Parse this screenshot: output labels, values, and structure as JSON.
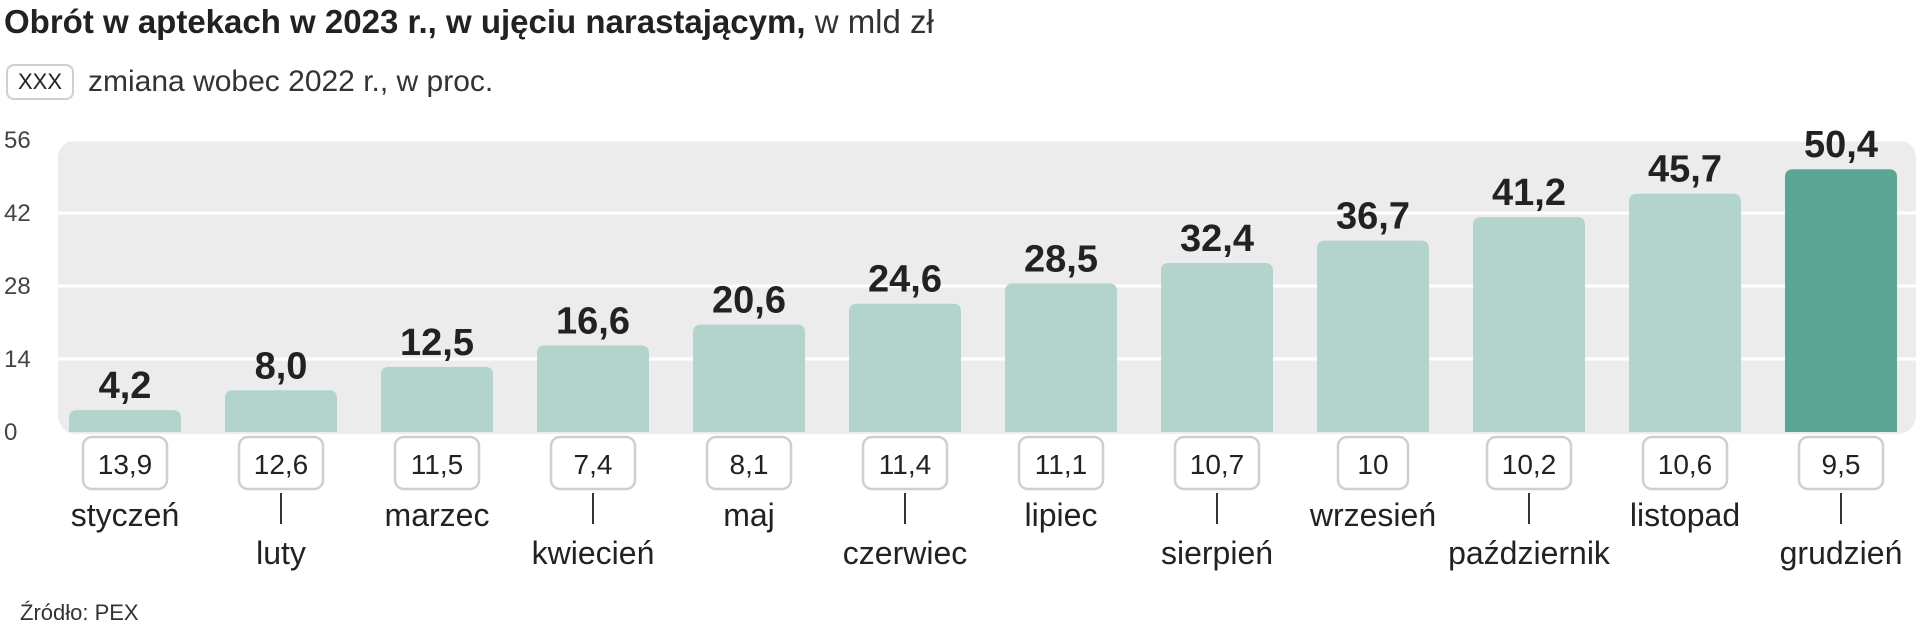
{
  "title": {
    "bold": "Obrót w aptekach w 2023 r., w ujęciu narastającym,",
    "unit": "w mld zł"
  },
  "legend": {
    "box_label": "XXX",
    "text": "zmiana wobec 2022 r., w proc."
  },
  "source": "Źródło: PEX",
  "colors": {
    "bar": "#b3d3cd",
    "bar_highlight": "#5ba595",
    "plot_bg": "#ececec",
    "grid": "#ffffff",
    "box_border": "#cfcfcf"
  },
  "chart_data": {
    "type": "bar",
    "categories": [
      "styczeń",
      "luty",
      "marzec",
      "kwiecień",
      "maj",
      "czerwiec",
      "lipiec",
      "sierpień",
      "wrzesień",
      "październik",
      "listopad",
      "grudzień"
    ],
    "values": [
      4.2,
      8.0,
      12.5,
      16.6,
      20.6,
      24.6,
      28.5,
      32.4,
      36.7,
      41.2,
      45.7,
      50.4
    ],
    "value_labels": [
      "4,2",
      "8,0",
      "12,5",
      "16,6",
      "20,6",
      "24,6",
      "28,5",
      "32,4",
      "36,7",
      "41,2",
      "45,7",
      "50,4"
    ],
    "change_vs_2022": [
      "13,9",
      "12,6",
      "11,5",
      "7,4",
      "8,1",
      "11,4",
      "11,1",
      "10,7",
      "10",
      "10,2",
      "10,6",
      "9,5"
    ],
    "yticks": [
      0,
      14,
      28,
      42,
      56
    ],
    "ylim": [
      0,
      56
    ],
    "highlight_index": 11,
    "grid": true
  }
}
